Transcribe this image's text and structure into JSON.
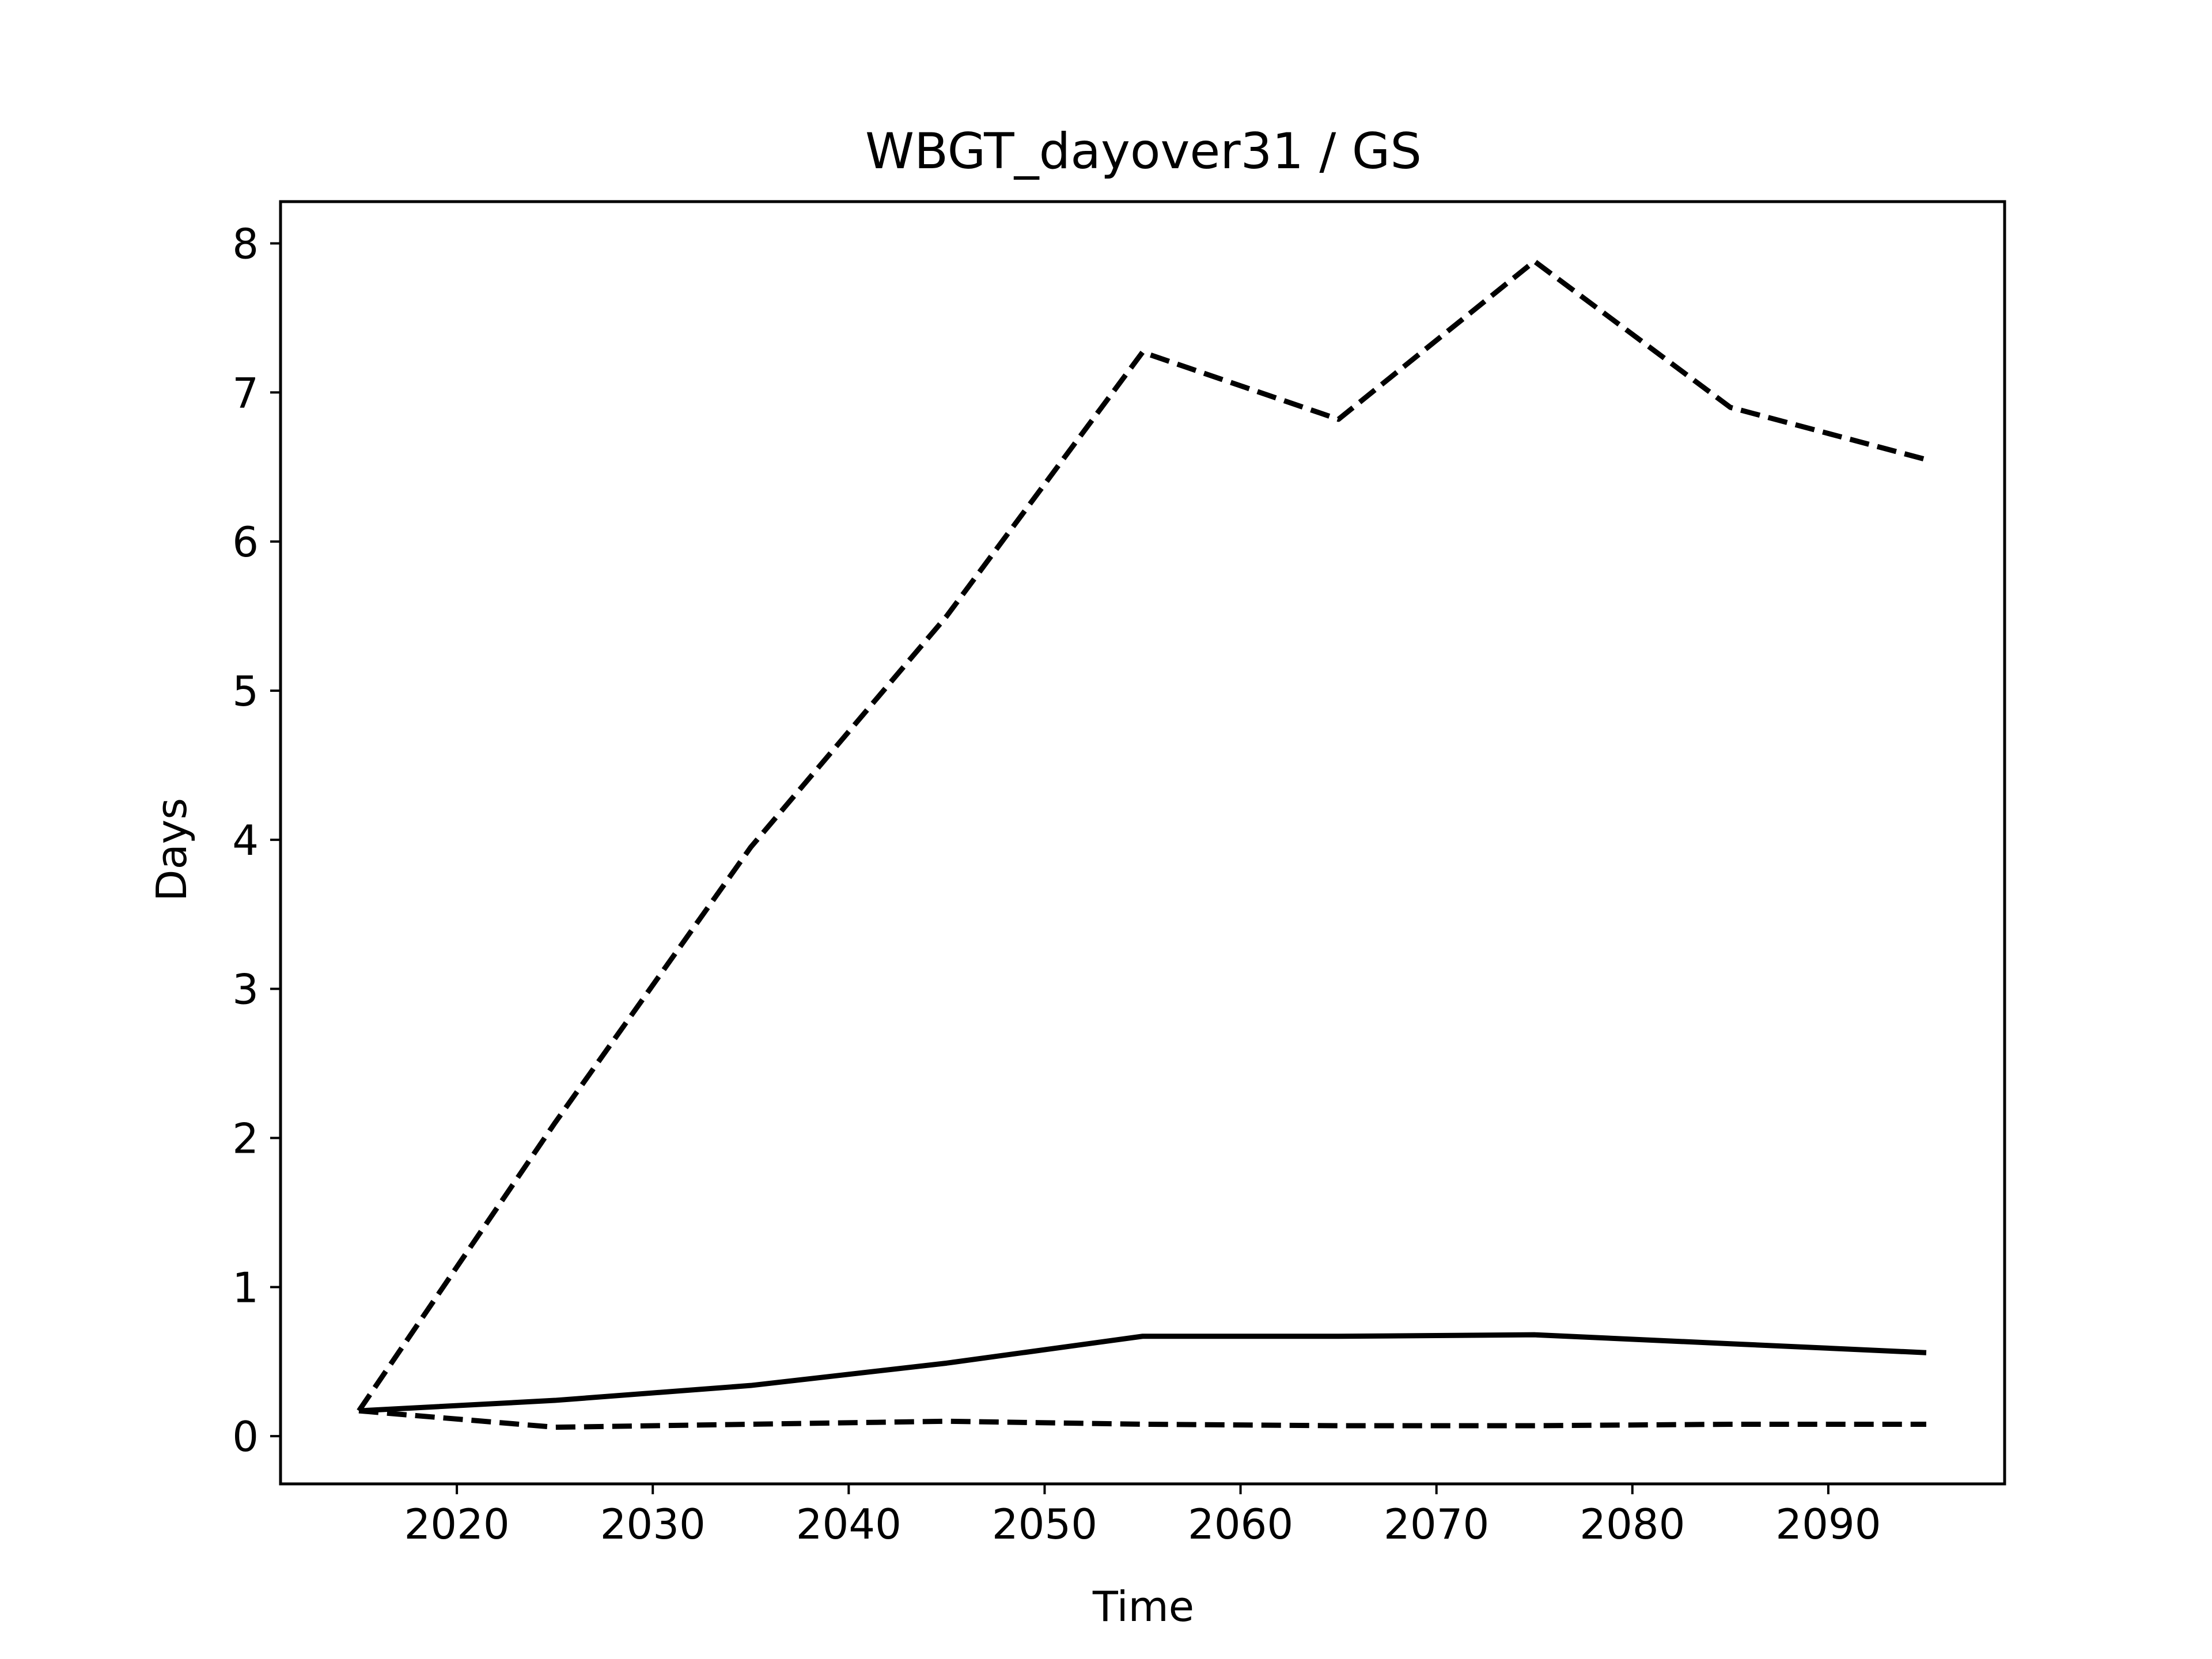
{
  "chart_data": {
    "type": "line",
    "title": "WBGT_dayover31 / GS",
    "xlabel": "Time",
    "ylabel": "Days",
    "xlim": [
      2011,
      2099
    ],
    "ylim": [
      -0.32,
      8.28
    ],
    "xticks": [
      2020,
      2030,
      2040,
      2050,
      2060,
      2070,
      2080,
      2090
    ],
    "yticks": [
      0,
      1,
      2,
      3,
      4,
      5,
      6,
      7,
      8
    ],
    "grid": false,
    "legend": "none",
    "x": [
      2015,
      2025,
      2035,
      2045,
      2055,
      2065,
      2075,
      2085,
      2095
    ],
    "series": [
      {
        "style": "solid",
        "color": "#000000",
        "values": [
          0.17,
          0.24,
          0.34,
          0.49,
          0.67,
          0.67,
          0.68,
          0.62,
          0.56
        ]
      },
      {
        "style": "dashed",
        "color": "#000000",
        "values": [
          0.17,
          2.1,
          3.95,
          5.5,
          7.27,
          6.82,
          7.88,
          6.9,
          6.55
        ]
      },
      {
        "style": "dashed",
        "color": "#000000",
        "values": [
          0.17,
          0.06,
          0.08,
          0.1,
          0.08,
          0.07,
          0.07,
          0.08,
          0.08
        ]
      }
    ]
  }
}
